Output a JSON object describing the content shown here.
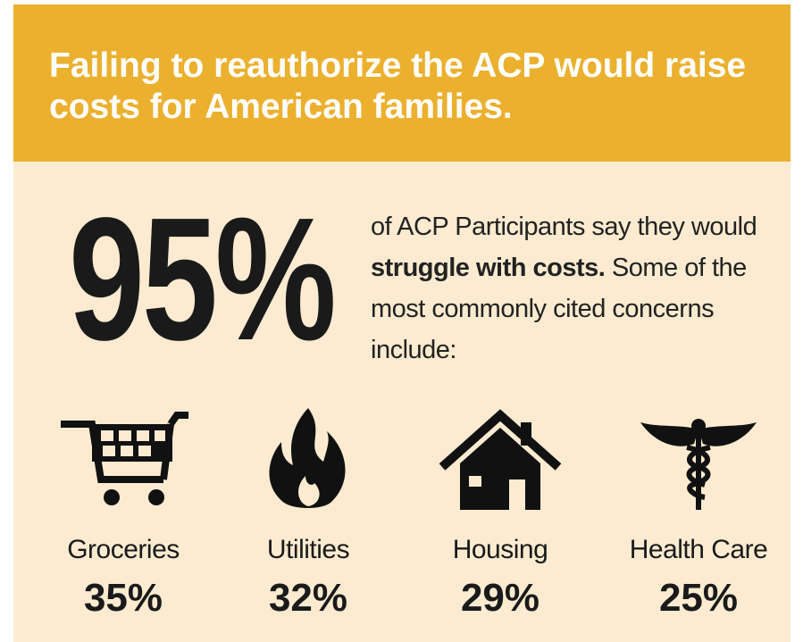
{
  "header": {
    "title": "Failing to reauthorize the ACP would raise costs for American families."
  },
  "headline": {
    "value": "95%",
    "text_before": "of ACP Participants say they would",
    "text_bold": "struggle with costs.",
    "text_after": "Some of the most commonly cited concerns include:"
  },
  "items": [
    {
      "label": "Groceries",
      "value": "35%"
    },
    {
      "label": "Utilities",
      "value": "32%"
    },
    {
      "label": "Housing",
      "value": "29%"
    },
    {
      "label": "Health Care",
      "value": "25%"
    }
  ]
}
